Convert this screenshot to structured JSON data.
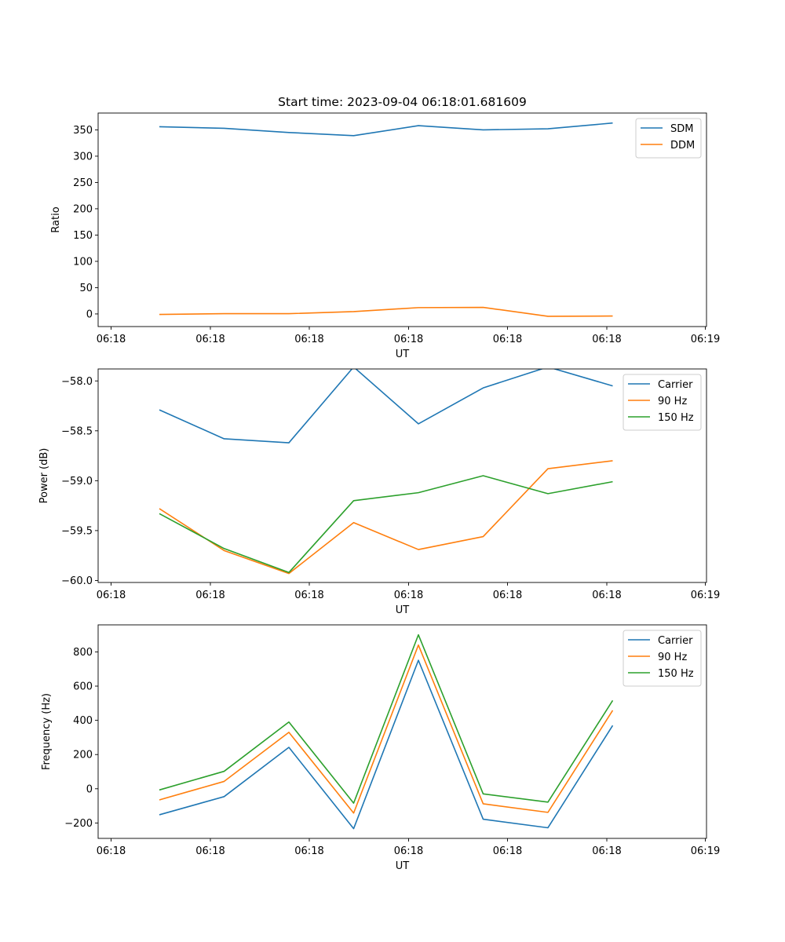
{
  "figure_title": "Start time: 2023-09-04 06:18:01.681609",
  "chart_data": [
    {
      "type": "line",
      "title": "Start time: 2023-09-04 06:18:01.681609",
      "xlabel": "UT",
      "ylabel": "Ratio",
      "x_ticks": [
        "06:18",
        "06:18",
        "06:18",
        "06:18",
        "06:18",
        "06:18",
        "06:19"
      ],
      "y_ticks": [
        "0",
        "50",
        "100",
        "150",
        "200",
        "250",
        "300",
        "350"
      ],
      "ylim": [
        -24,
        382
      ],
      "legend_position": "top-right",
      "series": [
        {
          "name": "SDM",
          "color": "#1f77b4",
          "values": [
            356,
            353,
            345,
            339,
            358,
            350,
            352,
            363
          ]
        },
        {
          "name": "DDM",
          "color": "#ff7f0e",
          "values": [
            -1,
            0.5,
            0.5,
            4.5,
            12,
            12.5,
            -4.5,
            -4
          ]
        }
      ]
    },
    {
      "type": "line",
      "title": "",
      "xlabel": "UT",
      "ylabel": "Power (dB)",
      "x_ticks": [
        "06:18",
        "06:18",
        "06:18",
        "06:18",
        "06:18",
        "06:18",
        "06:19"
      ],
      "y_ticks": [
        "−60.0",
        "−59.5",
        "−59.0",
        "−58.5",
        "−58.0"
      ],
      "ylim": [
        -60.02,
        -57.88
      ],
      "legend_position": "top-right",
      "series": [
        {
          "name": "Carrier",
          "color": "#1f77b4",
          "values": [
            -58.29,
            -58.58,
            -58.62,
            -57.86,
            -58.43,
            -58.07,
            -57.86,
            -58.05
          ]
        },
        {
          "name": "90 Hz",
          "color": "#ff7f0e",
          "values": [
            -59.28,
            -59.7,
            -59.93,
            -59.42,
            -59.69,
            -59.56,
            -58.88,
            -58.8
          ]
        },
        {
          "name": "150 Hz",
          "color": "#2ca02c",
          "values": [
            -59.33,
            -59.68,
            -59.92,
            -59.2,
            -59.12,
            -58.95,
            -59.13,
            -59.01
          ]
        }
      ]
    },
    {
      "type": "line",
      "title": "",
      "xlabel": "UT",
      "ylabel": "Frequency (Hz)",
      "x_ticks": [
        "06:18",
        "06:18",
        "06:18",
        "06:18",
        "06:18",
        "06:18",
        "06:19"
      ],
      "y_ticks": [
        "−200",
        "0",
        "200",
        "400",
        "600",
        "800"
      ],
      "ylim": [
        -290,
        958
      ],
      "legend_position": "top-right",
      "series": [
        {
          "name": "Carrier",
          "color": "#1f77b4",
          "values": [
            -152,
            -46,
            242,
            -233,
            751,
            -178,
            -228,
            370
          ]
        },
        {
          "name": "90 Hz",
          "color": "#ff7f0e",
          "values": [
            -65,
            43,
            330,
            -142,
            840,
            -88,
            -138,
            458
          ]
        },
        {
          "name": "150 Hz",
          "color": "#2ca02c",
          "values": [
            -7,
            102,
            390,
            -84,
            900,
            -30,
            -78,
            516
          ]
        }
      ]
    }
  ]
}
